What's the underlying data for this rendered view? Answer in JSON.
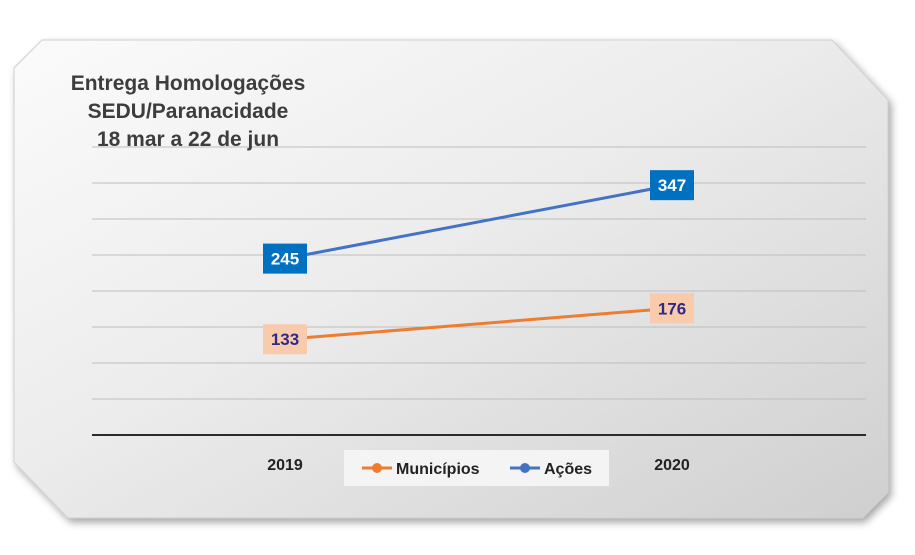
{
  "chart_data": {
    "type": "line",
    "title_lines": [
      "Entrega Homologações",
      "SEDU/Paranacidade",
      "18 mar a 22 de jun"
    ],
    "categories": [
      "2019",
      "2020"
    ],
    "series": [
      {
        "name": "Municípios",
        "values": [
          133,
          176
        ],
        "color": "#ed7d31",
        "label_bg": "#f8cbad",
        "label_color": "#2e2a86"
      },
      {
        "name": "Ações",
        "values": [
          245,
          347
        ],
        "color": "#4472c4",
        "label_bg": "#0070c0",
        "label_color": "#ffffff"
      }
    ],
    "ylim": [
      0,
      400
    ],
    "grid": true,
    "legend_position": "bottom-center"
  }
}
